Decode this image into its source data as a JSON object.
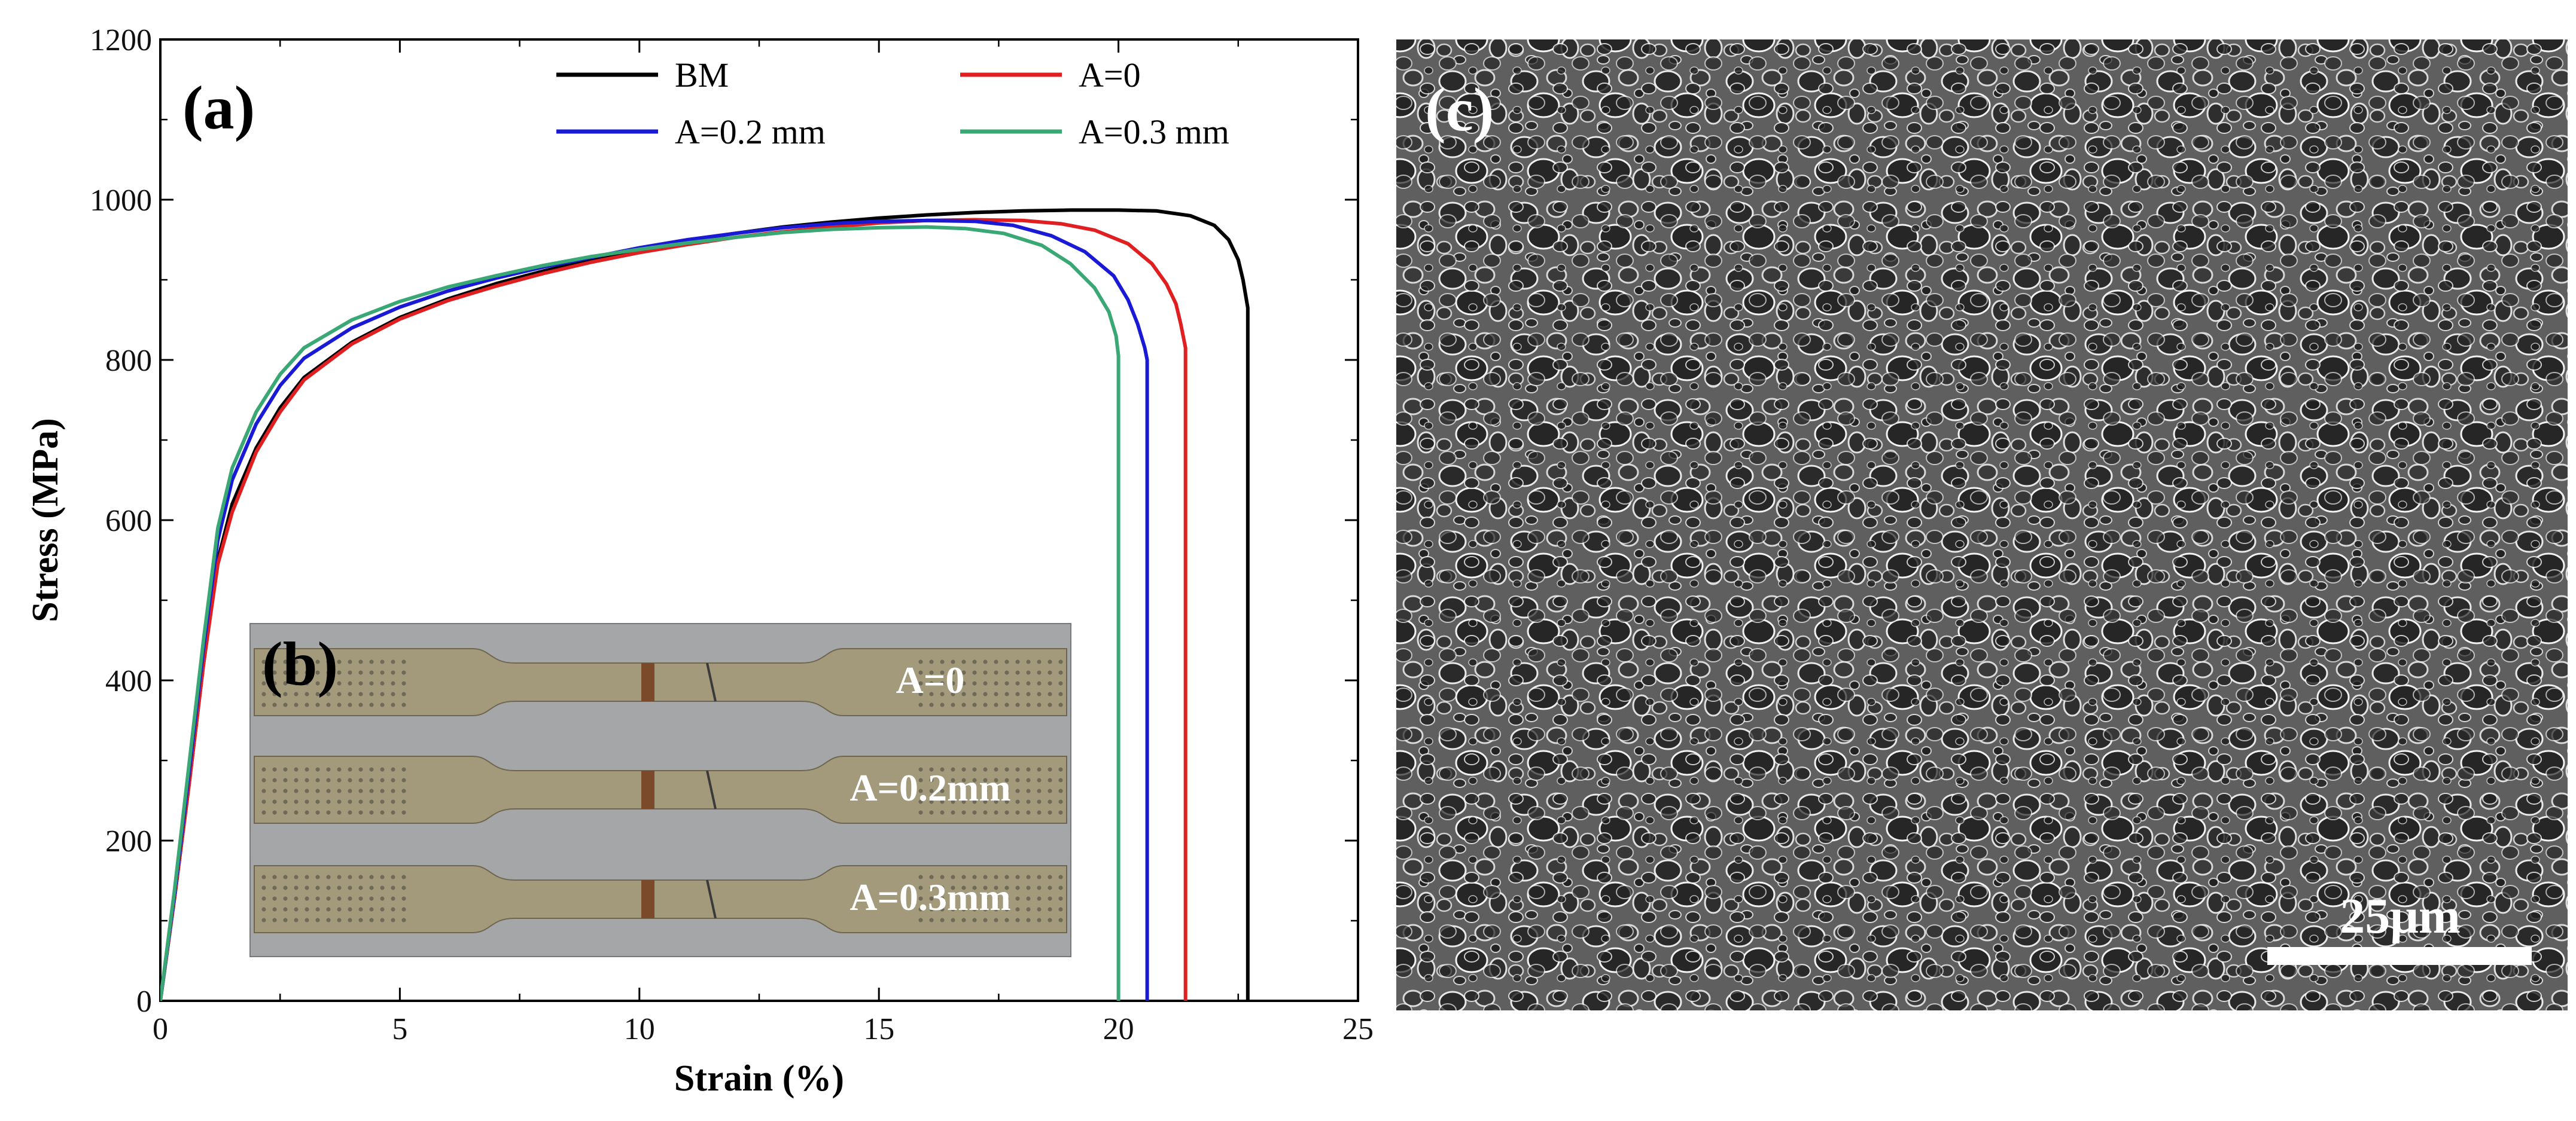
{
  "chart_data": {
    "type": "line",
    "title": "",
    "xlabel": "Strain (%)",
    "ylabel": "Stress (MPa)",
    "xlim": [
      0,
      25
    ],
    "ylim": [
      0,
      1200
    ],
    "xticks": [
      0,
      5,
      10,
      15,
      20,
      25
    ],
    "yticks": [
      0,
      200,
      400,
      600,
      800,
      1000,
      1200
    ],
    "grid": false,
    "legend_position": "top-right",
    "series": [
      {
        "name": "BM",
        "color": "#000000",
        "x": [
          0,
          0.3,
          0.6,
          0.9,
          1.2,
          1.5,
          2.0,
          2.5,
          3.0,
          4.0,
          5.0,
          6.0,
          7.0,
          8.0,
          9.0,
          10.0,
          11.0,
          12.0,
          13.0,
          14.0,
          15.0,
          16.0,
          17.0,
          18.0,
          19.0,
          20.0,
          20.8,
          21.5,
          22.0,
          22.3,
          22.5,
          22.6,
          22.7,
          22.7
        ],
        "y": [
          0,
          130,
          270,
          420,
          550,
          620,
          690,
          740,
          778,
          822,
          853,
          876,
          895,
          911,
          925,
          938,
          949,
          958,
          966,
          972,
          977,
          981,
          984,
          986,
          987,
          987,
          986,
          980,
          968,
          950,
          925,
          900,
          865,
          0
        ]
      },
      {
        "name": "A=0",
        "color": "#e02020",
        "x": [
          0,
          0.3,
          0.6,
          0.9,
          1.2,
          1.5,
          2.0,
          2.5,
          3.0,
          4.0,
          5.0,
          6.0,
          7.0,
          8.0,
          9.0,
          10.0,
          11.0,
          12.0,
          13.0,
          14.0,
          15.0,
          16.0,
          17.0,
          18.0,
          18.8,
          19.5,
          20.2,
          20.7,
          21.0,
          21.2,
          21.3,
          21.4,
          21.4
        ],
        "y": [
          0,
          130,
          270,
          420,
          545,
          610,
          685,
          735,
          775,
          820,
          851,
          874,
          892,
          908,
          922,
          934,
          944,
          953,
          960,
          966,
          971,
          974,
          975,
          974,
          970,
          962,
          945,
          920,
          895,
          870,
          845,
          815,
          0
        ]
      },
      {
        "name": "A=0.2 mm",
        "color": "#1a1ad6",
        "x": [
          0,
          0.3,
          0.6,
          0.9,
          1.2,
          1.5,
          2.0,
          2.5,
          3.0,
          4.0,
          5.0,
          6.0,
          7.0,
          8.0,
          9.0,
          10.0,
          11.0,
          12.0,
          13.0,
          14.0,
          15.0,
          16.0,
          17.0,
          17.8,
          18.6,
          19.3,
          19.9,
          20.2,
          20.4,
          20.55,
          20.6,
          20.6
        ],
        "y": [
          0,
          135,
          285,
          440,
          575,
          650,
          720,
          768,
          802,
          840,
          866,
          886,
          902,
          916,
          928,
          940,
          950,
          958,
          965,
          970,
          973,
          974,
          973,
          968,
          955,
          935,
          905,
          875,
          845,
          815,
          800,
          0
        ]
      },
      {
        "name": "A=0.3 mm",
        "color": "#3aa875",
        "x": [
          0,
          0.3,
          0.6,
          0.9,
          1.2,
          1.5,
          2.0,
          2.5,
          3.0,
          4.0,
          5.0,
          6.0,
          7.0,
          8.0,
          9.0,
          10.0,
          11.0,
          12.0,
          13.0,
          14.0,
          15.0,
          16.0,
          16.8,
          17.6,
          18.4,
          19.0,
          19.5,
          19.8,
          19.95,
          20.0,
          20.0
        ],
        "y": [
          0,
          140,
          295,
          450,
          590,
          665,
          735,
          782,
          815,
          850,
          873,
          891,
          905,
          918,
          929,
          938,
          946,
          953,
          959,
          963,
          965,
          966,
          964,
          958,
          943,
          920,
          890,
          860,
          830,
          805,
          0
        ]
      }
    ]
  },
  "panels": {
    "a_label": "(a)",
    "b_label": "(b)",
    "c_label": "(c)"
  },
  "inset_b": {
    "specimens": [
      "A=0",
      "A=0.2mm",
      "A=0.3mm"
    ]
  },
  "sem_c": {
    "scale_bar": "25μm"
  }
}
